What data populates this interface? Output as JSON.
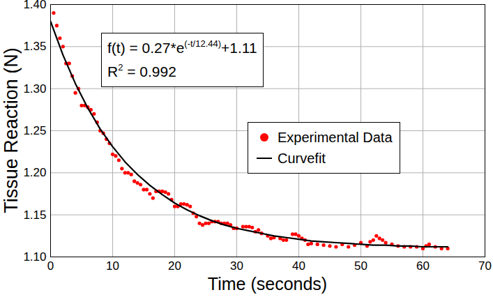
{
  "chart_data": {
    "type": "scatter",
    "x_label": "Time (seconds)",
    "y_label": "Tissue Reaction (N)",
    "xlim": [
      0,
      70
    ],
    "xticks": [
      0,
      10,
      20,
      30,
      40,
      50,
      60,
      70
    ],
    "ylim": [
      1.1,
      1.4
    ],
    "yticks": [
      {
        "value": 1.1,
        "label": "1.10"
      },
      {
        "value": 1.15,
        "label": "1.15"
      },
      {
        "value": 1.2,
        "label": "1.20"
      },
      {
        "value": 1.25,
        "label": "1.25"
      },
      {
        "value": 1.3,
        "label": "1.30"
      },
      {
        "value": 1.35,
        "label": "1.35"
      },
      {
        "value": 1.4,
        "label": "1.40"
      }
    ],
    "grid": true,
    "legend": "right",
    "annotations": [
      {
        "text": "f(t) = 0.27*e",
        "superscript": "(-t/12.44)",
        "suffix": "+1.11"
      },
      {
        "text": "R",
        "superscript": "2",
        "suffix": " = 0.992"
      }
    ],
    "series": [
      {
        "name": "Experimental Data",
        "type": "scatter",
        "color": "#ff0000",
        "marker": "circle",
        "x": [
          0.5,
          1,
          1.5,
          2,
          2.5,
          3,
          3.5,
          4,
          4.5,
          5,
          5.5,
          6,
          6.5,
          7,
          7.5,
          8,
          8.5,
          9,
          9.5,
          10,
          10.5,
          11,
          11.5,
          12,
          12.5,
          13,
          13.5,
          14,
          14.5,
          15,
          15.5,
          16,
          16.5,
          17,
          17.5,
          18,
          18.5,
          19,
          19.5,
          20,
          20.5,
          21,
          21.5,
          22,
          22.5,
          23,
          23.5,
          24,
          24.5,
          25,
          25.5,
          26,
          26.5,
          27,
          27.5,
          28,
          28.5,
          29,
          29.5,
          30,
          31,
          31.5,
          32,
          32.5,
          33,
          33.5,
          34,
          35,
          35.5,
          36,
          37,
          37.5,
          38,
          39,
          39.5,
          40,
          40.5,
          41,
          41.5,
          42,
          43,
          44,
          45,
          46,
          47,
          48,
          49,
          50,
          51,
          51.5,
          52,
          52.5,
          53,
          53.5,
          54,
          55,
          56,
          57,
          58,
          59,
          60,
          60.5,
          61,
          62,
          63,
          64
        ],
        "values": [
          1.39,
          1.375,
          1.36,
          1.35,
          1.33,
          1.33,
          1.315,
          1.295,
          1.3,
          1.28,
          1.28,
          1.278,
          1.275,
          1.27,
          1.26,
          1.25,
          1.247,
          1.24,
          1.235,
          1.222,
          1.22,
          1.215,
          1.205,
          1.2,
          1.2,
          1.198,
          1.19,
          1.188,
          1.186,
          1.18,
          1.18,
          1.175,
          1.17,
          1.178,
          1.178,
          1.178,
          1.177,
          1.175,
          1.168,
          1.16,
          1.16,
          1.163,
          1.163,
          1.162,
          1.16,
          1.152,
          1.148,
          1.14,
          1.138,
          1.14,
          1.14,
          1.142,
          1.142,
          1.142,
          1.14,
          1.14,
          1.14,
          1.138,
          1.134,
          1.134,
          1.136,
          1.136,
          1.136,
          1.135,
          1.13,
          1.132,
          1.128,
          1.125,
          1.122,
          1.123,
          1.122,
          1.12,
          1.12,
          1.127,
          1.127,
          1.125,
          1.122,
          1.12,
          1.115,
          1.116,
          1.115,
          1.114,
          1.113,
          1.112,
          1.115,
          1.112,
          1.114,
          1.117,
          1.113,
          1.118,
          1.12,
          1.125,
          1.122,
          1.12,
          1.117,
          1.115,
          1.113,
          1.112,
          1.112,
          1.112,
          1.11,
          1.113,
          1.115,
          1.112,
          1.11,
          1.11
        ]
      },
      {
        "name": "Curvefit",
        "type": "line",
        "color": "#000000",
        "line_style": "solid",
        "x": [
          0,
          2,
          4,
          6,
          8,
          10,
          12,
          14,
          16,
          18,
          20,
          22,
          24,
          26,
          28,
          30,
          32,
          34,
          36,
          38,
          40,
          42,
          44,
          46,
          48,
          50,
          52,
          54,
          56,
          58,
          60,
          62,
          64
        ],
        "values": [
          1.38,
          1.34,
          1.306,
          1.277,
          1.252,
          1.231,
          1.213,
          1.198,
          1.185,
          1.174,
          1.164,
          1.156,
          1.149,
          1.143,
          1.138,
          1.134,
          1.131,
          1.128,
          1.125,
          1.123,
          1.121,
          1.119,
          1.118,
          1.117,
          1.116,
          1.115,
          1.114,
          1.114,
          1.113,
          1.113,
          1.112,
          1.112,
          1.112
        ]
      }
    ]
  }
}
